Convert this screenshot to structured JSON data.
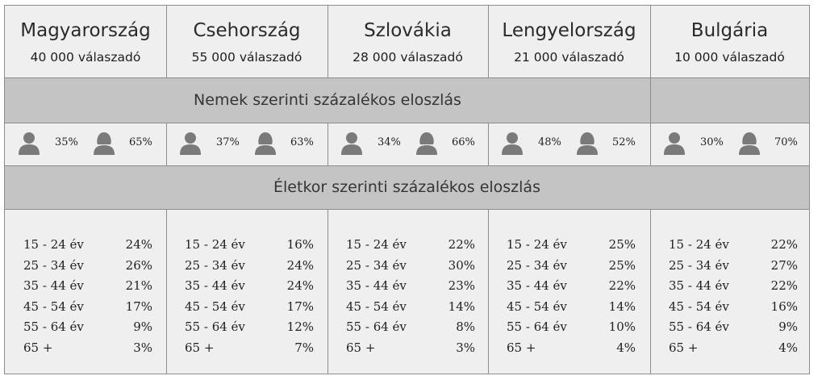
{
  "countries": [
    {
      "name": "Magyarország",
      "respondents": "40 000 válaszadó",
      "male": "35%",
      "female": "65%",
      "ages": [
        [
          "15 - 24 év",
          "24%"
        ],
        [
          "25 - 34 év",
          "26%"
        ],
        [
          "35 - 44 év",
          "21%"
        ],
        [
          "45 - 54 év",
          "17%"
        ],
        [
          "55 - 64 év",
          "9%"
        ],
        [
          "65 +",
          "3%"
        ]
      ]
    },
    {
      "name": "Csehország",
      "respondents": "55 000 válaszadó",
      "male": "37%",
      "female": "63%",
      "ages": [
        [
          "15 - 24 év",
          "16%"
        ],
        [
          "25 - 34 év",
          "24%"
        ],
        [
          "35 - 44 év",
          "24%"
        ],
        [
          "45 - 54 év",
          "17%"
        ],
        [
          "55 - 64 év",
          "12%"
        ],
        [
          "65 +",
          "7%"
        ]
      ]
    },
    {
      "name": "Szlovákia",
      "respondents": "28 000 válaszadó",
      "male": "34%",
      "female": "66%",
      "ages": [
        [
          "15 - 24 év",
          "22%"
        ],
        [
          "25 - 34 év",
          "30%"
        ],
        [
          "35 - 44 év",
          "23%"
        ],
        [
          "45 - 54 év",
          "14%"
        ],
        [
          "55 - 64 év",
          "8%"
        ],
        [
          "65 +",
          "3%"
        ]
      ]
    },
    {
      "name": "Lengyelország",
      "respondents": "21 000 válaszadó",
      "male": "48%",
      "female": "52%",
      "ages": [
        [
          "15 - 24 év",
          "25%"
        ],
        [
          "25 - 34 év",
          "25%"
        ],
        [
          "35 - 44 év",
          "22%"
        ],
        [
          "45 - 54 év",
          "14%"
        ],
        [
          "55 - 64 év",
          "10%"
        ],
        [
          "65 +",
          "4%"
        ]
      ]
    },
    {
      "name": "Bulgária",
      "respondents": "10 000 válaszadó",
      "male": "30%",
      "female": "70%",
      "ages": [
        [
          "15 - 24 év",
          "22%"
        ],
        [
          "25 - 34 év",
          "27%"
        ],
        [
          "35 - 44 év",
          "22%"
        ],
        [
          "45 - 54 év",
          "16%"
        ],
        [
          "55 - 64 év",
          "9%"
        ],
        [
          "65 +",
          "4%"
        ]
      ]
    }
  ],
  "sections": {
    "gender_title": "Nemek szerinti százalékos eloszlás",
    "age_title": "Életkor szerinti százalékos eloszlás"
  },
  "icons": {
    "male": "male-person-icon",
    "female": "female-person-icon"
  },
  "colors": {
    "header_bg": "#efefef",
    "section_bg": "#c4c4c4",
    "icon": "#7a7a7a",
    "border": "#8c8c8c"
  }
}
